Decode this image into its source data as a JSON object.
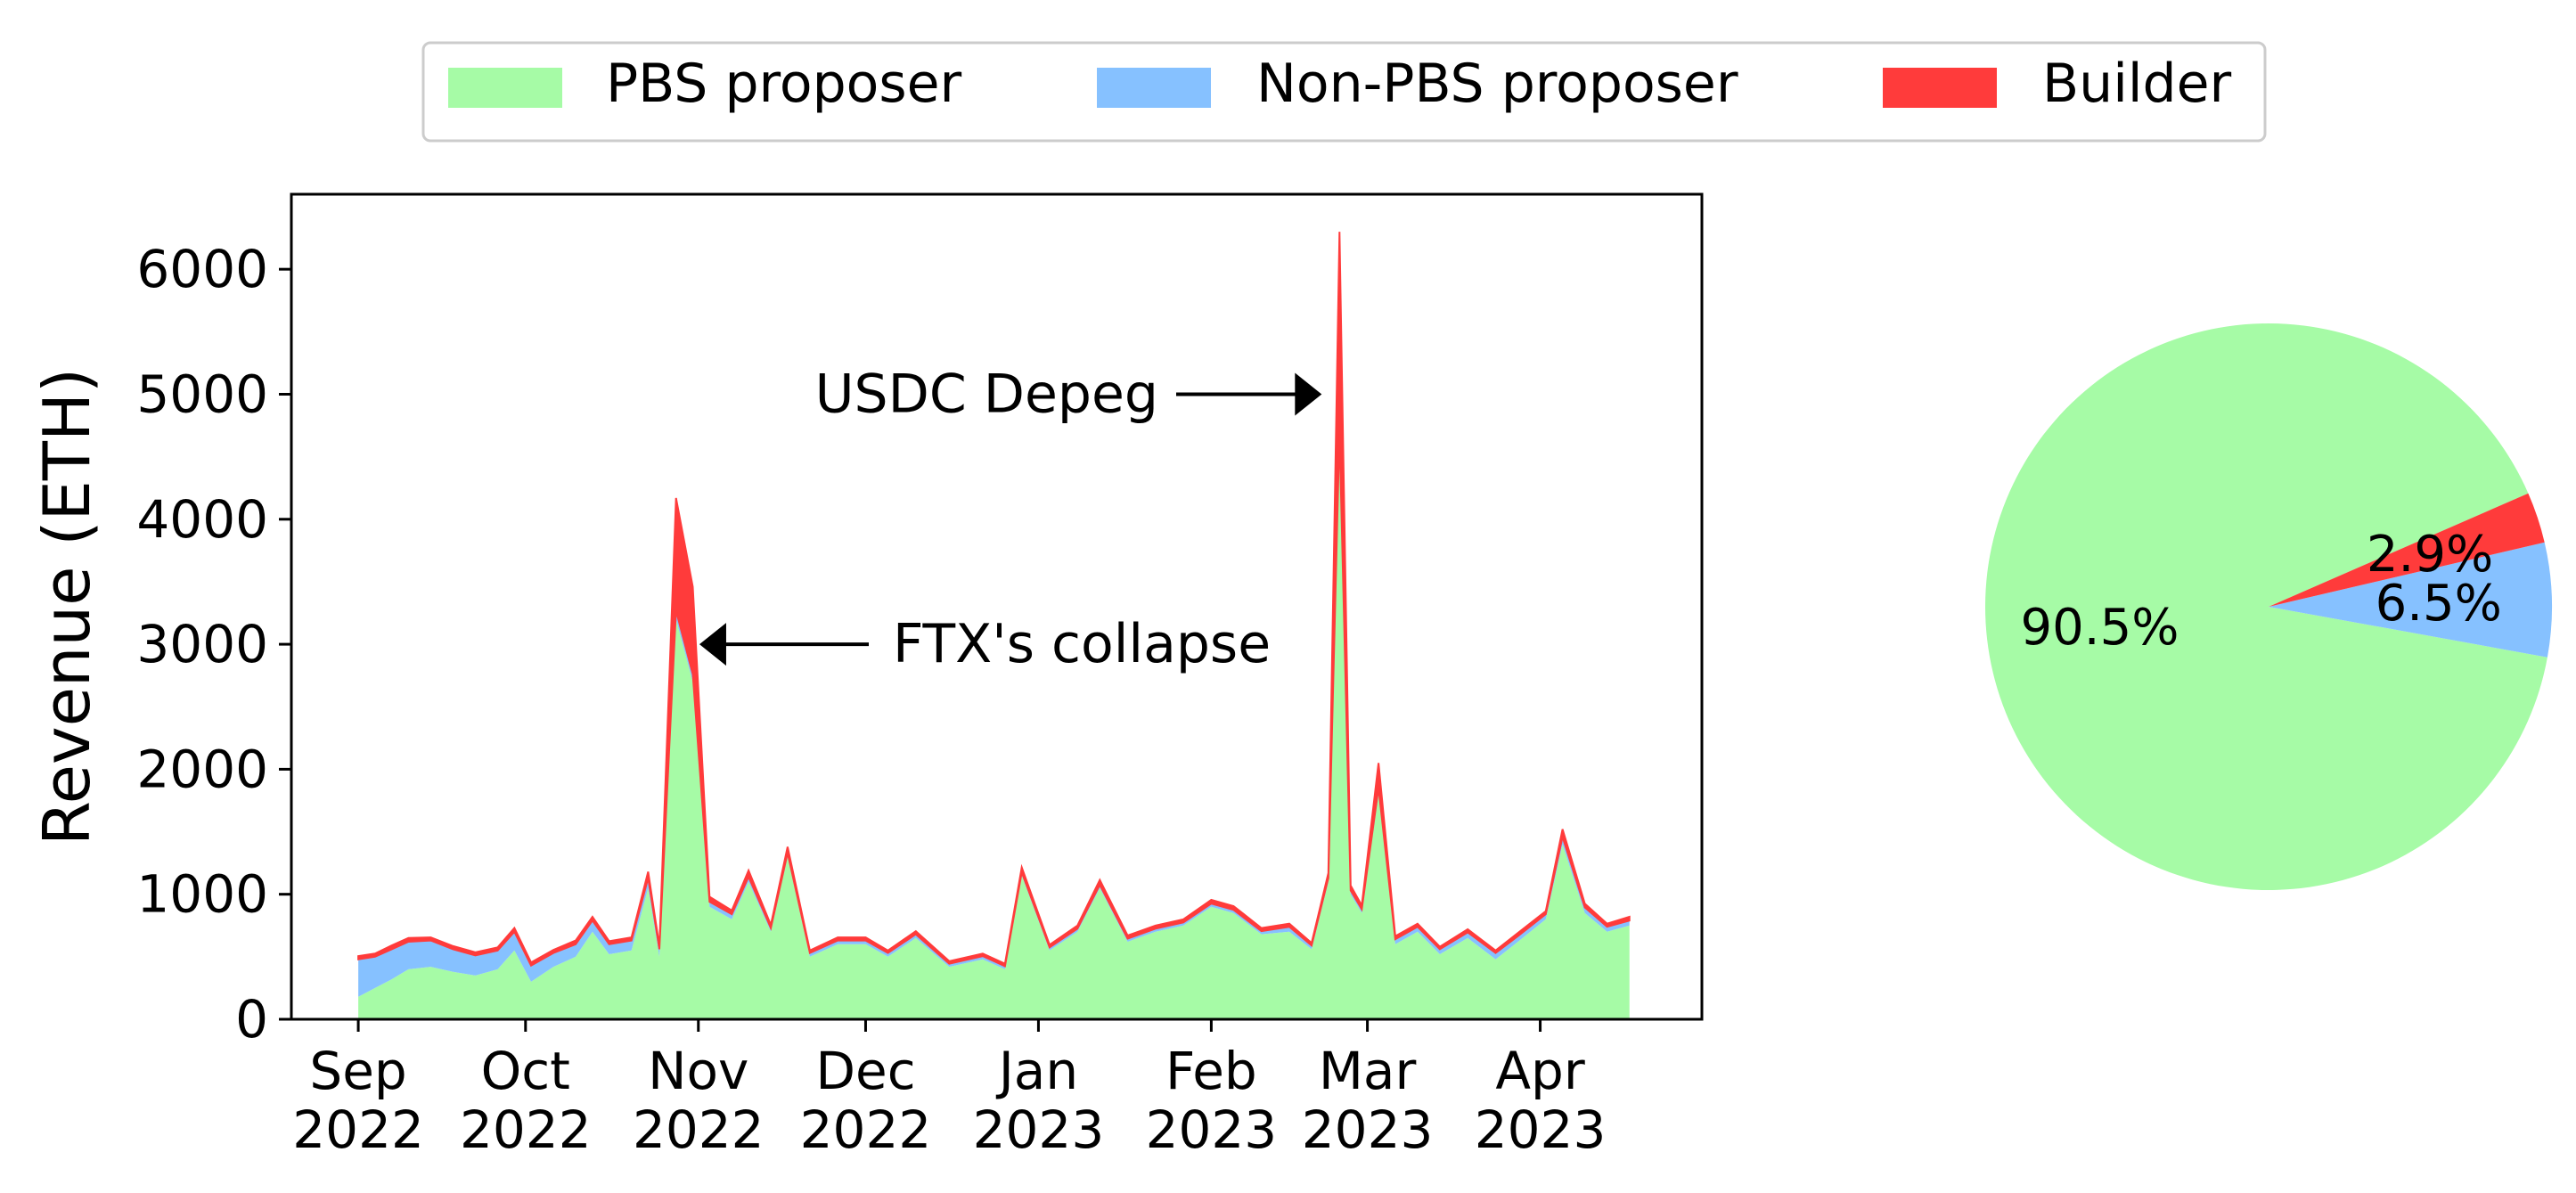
{
  "legend": {
    "items": [
      {
        "label": "PBS proposer",
        "color": "#a6fba6"
      },
      {
        "label": "Non-PBS proposer",
        "color": "#86c1ff"
      },
      {
        "label": "Builder",
        "color": "#ff3b3b"
      }
    ]
  },
  "chart_data": [
    {
      "type": "area",
      "stacked": true,
      "ylabel": "Revenue (ETH)",
      "ylim": [
        0,
        6600
      ],
      "y_ticks": [
        "0",
        "1000",
        "2000",
        "3000",
        "4000",
        "5000",
        "6000"
      ],
      "x_ticks": [
        {
          "date": "2022-09-01",
          "month": "Sep",
          "year": "2022"
        },
        {
          "date": "2022-10-01",
          "month": "Oct",
          "year": "2022"
        },
        {
          "date": "2022-11-01",
          "month": "Nov",
          "year": "2022"
        },
        {
          "date": "2022-12-01",
          "month": "Dec",
          "year": "2022"
        },
        {
          "date": "2023-01-01",
          "month": "Jan",
          "year": "2023"
        },
        {
          "date": "2023-02-01",
          "month": "Feb",
          "year": "2023"
        },
        {
          "date": "2023-03-01",
          "month": "Mar",
          "year": "2023"
        },
        {
          "date": "2023-04-01",
          "month": "Apr",
          "year": "2023"
        }
      ],
      "xlim": [
        "2022-08-20",
        "2023-04-30"
      ],
      "annotations": [
        {
          "text": "USDC Depeg",
          "date": "2023-02-24",
          "value": 5000
        },
        {
          "text": "FTX's collapse",
          "date": "2022-10-29",
          "value": 3000
        }
      ],
      "series": [
        {
          "name": "PBS proposer",
          "color": "#a6fba6",
          "points": [
            [
              "2022-09-01",
              180
            ],
            [
              "2022-09-04",
              250
            ],
            [
              "2022-09-07",
              320
            ],
            [
              "2022-09-10",
              400
            ],
            [
              "2022-09-14",
              420
            ],
            [
              "2022-09-18",
              380
            ],
            [
              "2022-09-22",
              350
            ],
            [
              "2022-09-26",
              400
            ],
            [
              "2022-09-29",
              550
            ],
            [
              "2022-10-02",
              300
            ],
            [
              "2022-10-06",
              420
            ],
            [
              "2022-10-10",
              500
            ],
            [
              "2022-10-13",
              700
            ],
            [
              "2022-10-16",
              520
            ],
            [
              "2022-10-20",
              550
            ],
            [
              "2022-10-23",
              1050
            ],
            [
              "2022-10-25",
              500
            ],
            [
              "2022-10-28",
              3200
            ],
            [
              "2022-10-31",
              2700
            ],
            [
              "2022-11-03",
              900
            ],
            [
              "2022-11-07",
              800
            ],
            [
              "2022-11-10",
              1100
            ],
            [
              "2022-11-14",
              700
            ],
            [
              "2022-11-17",
              1300
            ],
            [
              "2022-11-21",
              500
            ],
            [
              "2022-11-26",
              600
            ],
            [
              "2022-12-01",
              600
            ],
            [
              "2022-12-05",
              500
            ],
            [
              "2022-12-10",
              650
            ],
            [
              "2022-12-16",
              420
            ],
            [
              "2022-12-22",
              480
            ],
            [
              "2022-12-26",
              400
            ],
            [
              "2022-12-29",
              1150
            ],
            [
              "2023-01-03",
              550
            ],
            [
              "2023-01-08",
              700
            ],
            [
              "2023-01-12",
              1050
            ],
            [
              "2023-01-17",
              620
            ],
            [
              "2023-01-22",
              700
            ],
            [
              "2023-01-27",
              750
            ],
            [
              "2023-02-01",
              900
            ],
            [
              "2023-02-05",
              850
            ],
            [
              "2023-02-10",
              680
            ],
            [
              "2023-02-15",
              700
            ],
            [
              "2023-02-19",
              560
            ],
            [
              "2023-02-22",
              1100
            ],
            [
              "2023-02-24",
              4600
            ],
            [
              "2023-02-26",
              1000
            ],
            [
              "2023-02-28",
              850
            ],
            [
              "2023-03-03",
              1800
            ],
            [
              "2023-03-06",
              600
            ],
            [
              "2023-03-10",
              700
            ],
            [
              "2023-03-14",
              520
            ],
            [
              "2023-03-19",
              650
            ],
            [
              "2023-03-24",
              480
            ],
            [
              "2023-03-28",
              620
            ],
            [
              "2023-04-02",
              800
            ],
            [
              "2023-04-05",
              1400
            ],
            [
              "2023-04-09",
              850
            ],
            [
              "2023-04-13",
              700
            ],
            [
              "2023-04-17",
              750
            ]
          ]
        },
        {
          "name": "Non-PBS proposer",
          "color": "#86c1ff",
          "points": [
            [
              "2022-09-01",
              300
            ],
            [
              "2022-09-04",
              250
            ],
            [
              "2022-09-07",
              240
            ],
            [
              "2022-09-10",
              220
            ],
            [
              "2022-09-14",
              210
            ],
            [
              "2022-09-18",
              180
            ],
            [
              "2022-09-22",
              160
            ],
            [
              "2022-09-26",
              150
            ],
            [
              "2022-09-29",
              150
            ],
            [
              "2022-10-02",
              130
            ],
            [
              "2022-10-06",
              110
            ],
            [
              "2022-10-10",
              100
            ],
            [
              "2022-10-13",
              90
            ],
            [
              "2022-10-16",
              80
            ],
            [
              "2022-10-20",
              80
            ],
            [
              "2022-10-23",
              80
            ],
            [
              "2022-10-25",
              60
            ],
            [
              "2022-10-28",
              70
            ],
            [
              "2022-10-31",
              60
            ],
            [
              "2022-11-03",
              40
            ],
            [
              "2022-11-07",
              40
            ],
            [
              "2022-11-10",
              40
            ],
            [
              "2022-11-14",
              30
            ],
            [
              "2022-11-17",
              30
            ],
            [
              "2022-11-21",
              30
            ],
            [
              "2022-11-26",
              30
            ],
            [
              "2022-12-01",
              30
            ],
            [
              "2022-12-05",
              30
            ],
            [
              "2022-12-10",
              30
            ],
            [
              "2022-12-16",
              25
            ],
            [
              "2022-12-22",
              25
            ],
            [
              "2022-12-26",
              25
            ],
            [
              "2022-12-29",
              25
            ],
            [
              "2023-01-03",
              25
            ],
            [
              "2023-01-08",
              25
            ],
            [
              "2023-01-12",
              25
            ],
            [
              "2023-01-17",
              25
            ],
            [
              "2023-01-22",
              25
            ],
            [
              "2023-01-27",
              25
            ],
            [
              "2023-02-01",
              25
            ],
            [
              "2023-02-05",
              25
            ],
            [
              "2023-02-10",
              25
            ],
            [
              "2023-02-15",
              40
            ],
            [
              "2023-02-19",
              30
            ],
            [
              "2023-02-22",
              30
            ],
            [
              "2023-02-24",
              100
            ],
            [
              "2023-02-26",
              30
            ],
            [
              "2023-02-28",
              30
            ],
            [
              "2023-03-03",
              50
            ],
            [
              "2023-03-06",
              40
            ],
            [
              "2023-03-10",
              40
            ],
            [
              "2023-03-14",
              40
            ],
            [
              "2023-03-19",
              45
            ],
            [
              "2023-03-24",
              50
            ],
            [
              "2023-03-28",
              45
            ],
            [
              "2023-04-02",
              40
            ],
            [
              "2023-04-05",
              60
            ],
            [
              "2023-04-09",
              45
            ],
            [
              "2023-04-13",
              40
            ],
            [
              "2023-04-17",
              40
            ]
          ]
        },
        {
          "name": "Builder",
          "color": "#ff3b3b",
          "points": [
            [
              "2022-09-01",
              25
            ],
            [
              "2022-09-04",
              25
            ],
            [
              "2022-09-07",
              30
            ],
            [
              "2022-09-10",
              30
            ],
            [
              "2022-09-14",
              25
            ],
            [
              "2022-09-18",
              25
            ],
            [
              "2022-09-22",
              25
            ],
            [
              "2022-09-26",
              25
            ],
            [
              "2022-09-29",
              30
            ],
            [
              "2022-10-02",
              25
            ],
            [
              "2022-10-06",
              25
            ],
            [
              "2022-10-10",
              30
            ],
            [
              "2022-10-13",
              30
            ],
            [
              "2022-10-16",
              25
            ],
            [
              "2022-10-20",
              25
            ],
            [
              "2022-10-23",
              50
            ],
            [
              "2022-10-25",
              25
            ],
            [
              "2022-10-28",
              900
            ],
            [
              "2022-10-31",
              700
            ],
            [
              "2022-11-03",
              40
            ],
            [
              "2022-11-07",
              30
            ],
            [
              "2022-11-10",
              50
            ],
            [
              "2022-11-14",
              25
            ],
            [
              "2022-11-17",
              50
            ],
            [
              "2022-11-21",
              20
            ],
            [
              "2022-11-26",
              25
            ],
            [
              "2022-12-01",
              25
            ],
            [
              "2022-12-05",
              20
            ],
            [
              "2022-12-10",
              25
            ],
            [
              "2022-12-16",
              20
            ],
            [
              "2022-12-22",
              20
            ],
            [
              "2022-12-26",
              20
            ],
            [
              "2022-12-29",
              40
            ],
            [
              "2023-01-03",
              20
            ],
            [
              "2023-01-08",
              25
            ],
            [
              "2023-01-12",
              40
            ],
            [
              "2023-01-17",
              25
            ],
            [
              "2023-01-22",
              25
            ],
            [
              "2023-01-27",
              25
            ],
            [
              "2023-02-01",
              30
            ],
            [
              "2023-02-05",
              30
            ],
            [
              "2023-02-10",
              25
            ],
            [
              "2023-02-15",
              25
            ],
            [
              "2023-02-19",
              20
            ],
            [
              "2023-02-22",
              40
            ],
            [
              "2023-02-24",
              1600
            ],
            [
              "2023-02-26",
              40
            ],
            [
              "2023-02-28",
              30
            ],
            [
              "2023-03-03",
              200
            ],
            [
              "2023-03-06",
              25
            ],
            [
              "2023-03-10",
              25
            ],
            [
              "2023-03-14",
              20
            ],
            [
              "2023-03-19",
              25
            ],
            [
              "2023-03-24",
              20
            ],
            [
              "2023-03-28",
              25
            ],
            [
              "2023-04-02",
              25
            ],
            [
              "2023-04-05",
              60
            ],
            [
              "2023-04-09",
              30
            ],
            [
              "2023-04-13",
              25
            ],
            [
              "2023-04-17",
              30
            ]
          ]
        }
      ]
    },
    {
      "type": "pie",
      "slices": [
        {
          "name": "PBS proposer",
          "value": 90.5,
          "label": "90.5%",
          "color": "#a6fba6"
        },
        {
          "name": "Non-PBS proposer",
          "value": 6.5,
          "label": "6.5%",
          "color": "#86c1ff"
        },
        {
          "name": "Builder",
          "value": 2.9,
          "label": "2.9%",
          "color": "#ff3b3b"
        }
      ]
    }
  ]
}
